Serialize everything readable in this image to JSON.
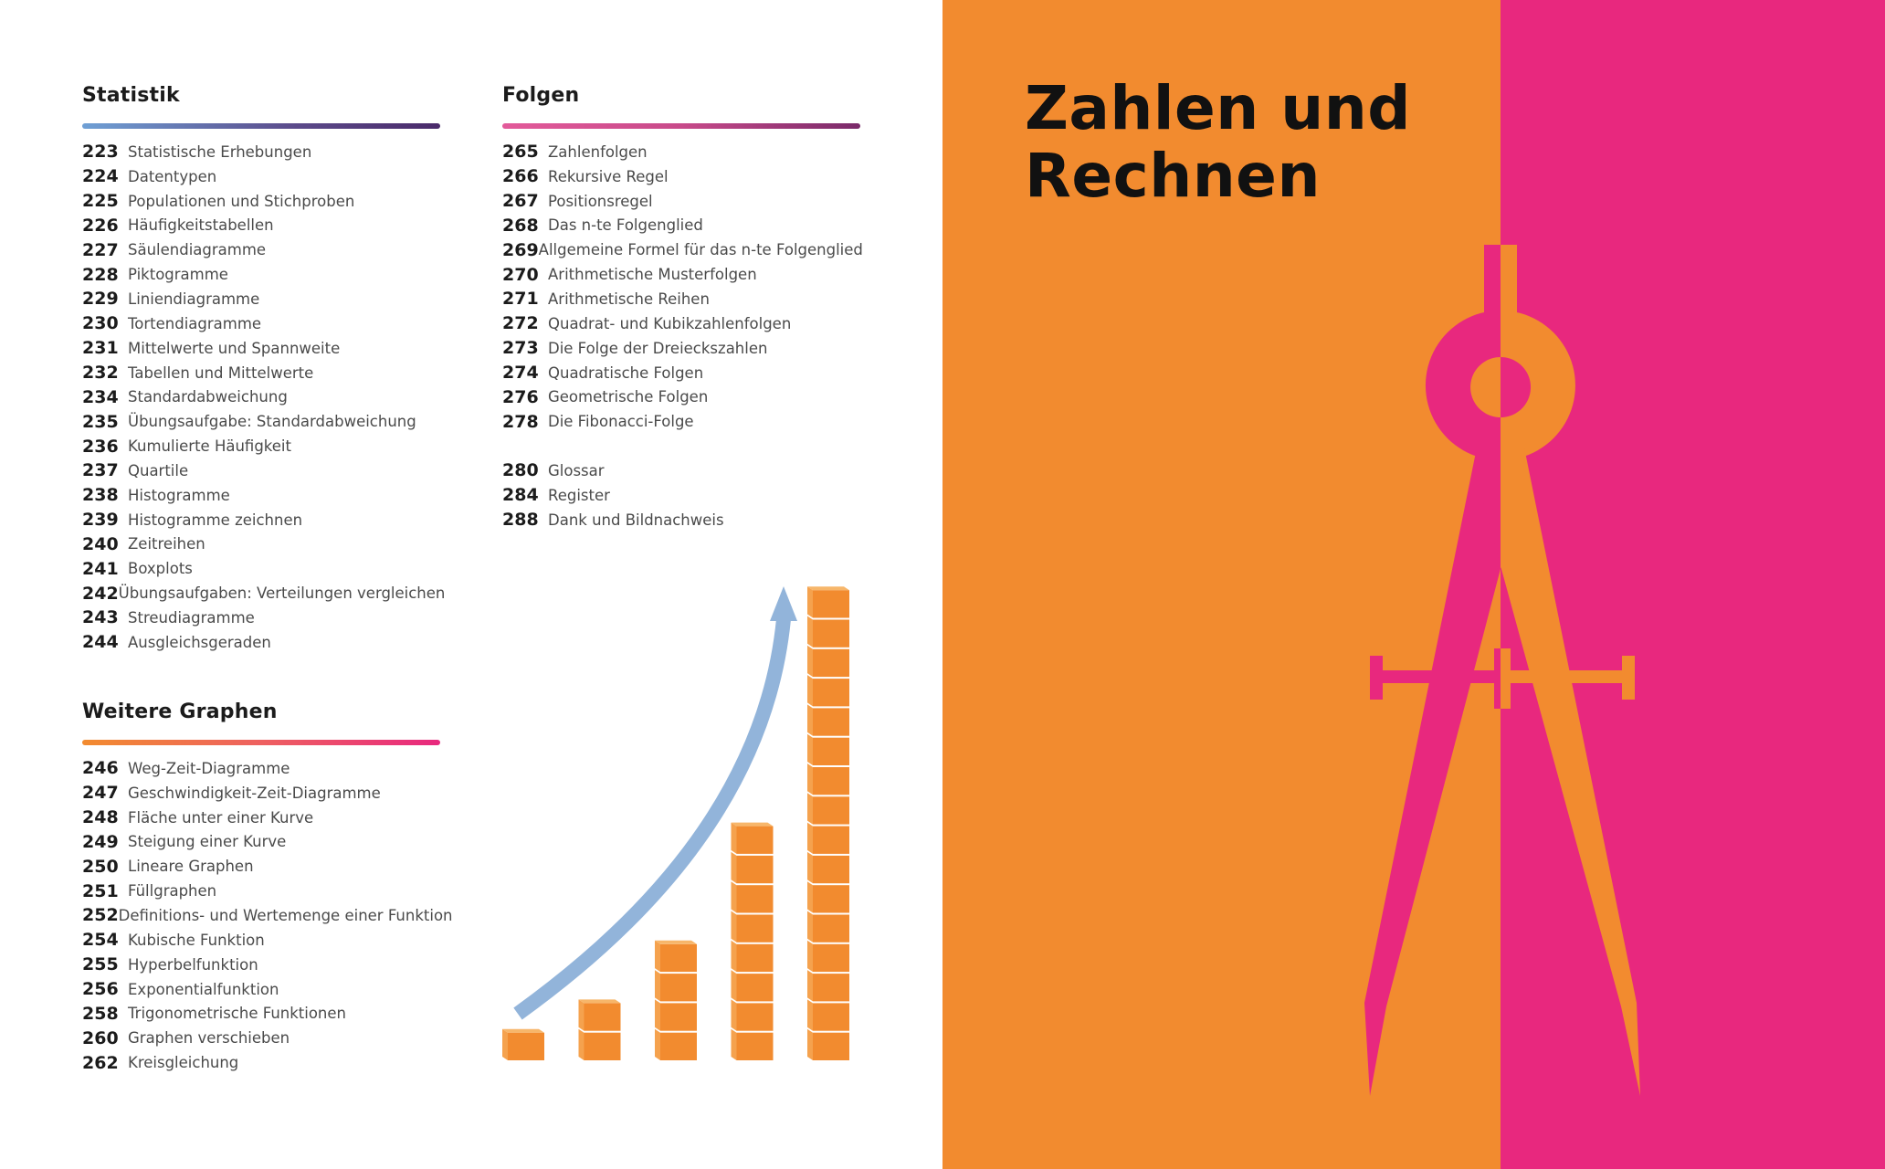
{
  "sections": {
    "statistik": {
      "heading": "Statistik",
      "items": [
        {
          "page": "223",
          "title": "Statistische Erhebungen"
        },
        {
          "page": "224",
          "title": "Datentypen"
        },
        {
          "page": "225",
          "title": "Populationen und Stichproben"
        },
        {
          "page": "226",
          "title": "Häufigkeitstabellen"
        },
        {
          "page": "227",
          "title": "Säulendiagramme"
        },
        {
          "page": "228",
          "title": "Piktogramme"
        },
        {
          "page": "229",
          "title": "Liniendiagramme"
        },
        {
          "page": "230",
          "title": "Tortendiagramme"
        },
        {
          "page": "231",
          "title": "Mittelwerte und Spannweite"
        },
        {
          "page": "232",
          "title": "Tabellen und Mittelwerte"
        },
        {
          "page": "234",
          "title": "Standardabweichung"
        },
        {
          "page": "235",
          "title": "Übungsaufgabe: Standardabweichung"
        },
        {
          "page": "236",
          "title": "Kumulierte Häufigkeit"
        },
        {
          "page": "237",
          "title": "Quartile"
        },
        {
          "page": "238",
          "title": "Histogramme"
        },
        {
          "page": "239",
          "title": "Histogramme zeichnen"
        },
        {
          "page": "240",
          "title": "Zeitreihen"
        },
        {
          "page": "241",
          "title": "Boxplots"
        },
        {
          "page": "242",
          "title": "Übungsaufgaben: Verteilungen vergleichen"
        },
        {
          "page": "243",
          "title": "Streudiagramme"
        },
        {
          "page": "244",
          "title": "Ausgleichsgeraden"
        }
      ]
    },
    "graphen": {
      "heading": "Weitere Graphen",
      "items": [
        {
          "page": "246",
          "title": "Weg-Zeit-Diagramme"
        },
        {
          "page": "247",
          "title": "Geschwindigkeit-Zeit-Diagramme"
        },
        {
          "page": "248",
          "title": "Fläche unter einer Kurve"
        },
        {
          "page": "249",
          "title": "Steigung einer Kurve"
        },
        {
          "page": "250",
          "title": "Lineare Graphen"
        },
        {
          "page": "251",
          "title": "Füllgraphen"
        },
        {
          "page": "252",
          "title": "Definitions- und Wertemenge einer Funktion"
        },
        {
          "page": "254",
          "title": "Kubische Funktion"
        },
        {
          "page": "255",
          "title": "Hyperbelfunktion"
        },
        {
          "page": "256",
          "title": "Exponentialfunktion"
        },
        {
          "page": "258",
          "title": "Trigonometrische Funktionen"
        },
        {
          "page": "260",
          "title": "Graphen verschieben"
        },
        {
          "page": "262",
          "title": "Kreisgleichung"
        }
      ]
    },
    "folgen": {
      "heading": "Folgen",
      "items": [
        {
          "page": "265",
          "title": "Zahlenfolgen"
        },
        {
          "page": "266",
          "title": "Rekursive Regel"
        },
        {
          "page": "267",
          "title": "Positionsregel"
        },
        {
          "page": "268",
          "title": "Das n-te Folgenglied"
        },
        {
          "page": "269",
          "title": "Allgemeine Formel für das n-te Folgenglied"
        },
        {
          "page": "270",
          "title": "Arithmetische Musterfolgen"
        },
        {
          "page": "271",
          "title": "Arithmetische Reihen"
        },
        {
          "page": "272",
          "title": "Quadrat- und Kubikzahlenfolgen"
        },
        {
          "page": "273",
          "title": "Die Folge der Dreieckszahlen"
        },
        {
          "page": "274",
          "title": "Quadratische Folgen"
        },
        {
          "page": "276",
          "title": "Geometrische Folgen"
        },
        {
          "page": "278",
          "title": "Die Fibonacci-Folge"
        }
      ]
    },
    "anhang": {
      "items": [
        {
          "page": "280",
          "title": "Glossar"
        },
        {
          "page": "284",
          "title": "Register"
        },
        {
          "page": "288",
          "title": "Dank und Bildnachweis"
        }
      ]
    }
  },
  "chapter_title": {
    "line1": "Zahlen und",
    "line2": "Rechnen"
  },
  "colors": {
    "orange": "#f28b2f",
    "pink": "#e8287e",
    "arrow_blue": "#92b4da"
  },
  "icons": {
    "illustration": "stacked-cubes-growth-chart",
    "compass": "drawing-compass-icon"
  },
  "illustration": {
    "cube_stacks": [
      1,
      2,
      4,
      8,
      16
    ]
  }
}
